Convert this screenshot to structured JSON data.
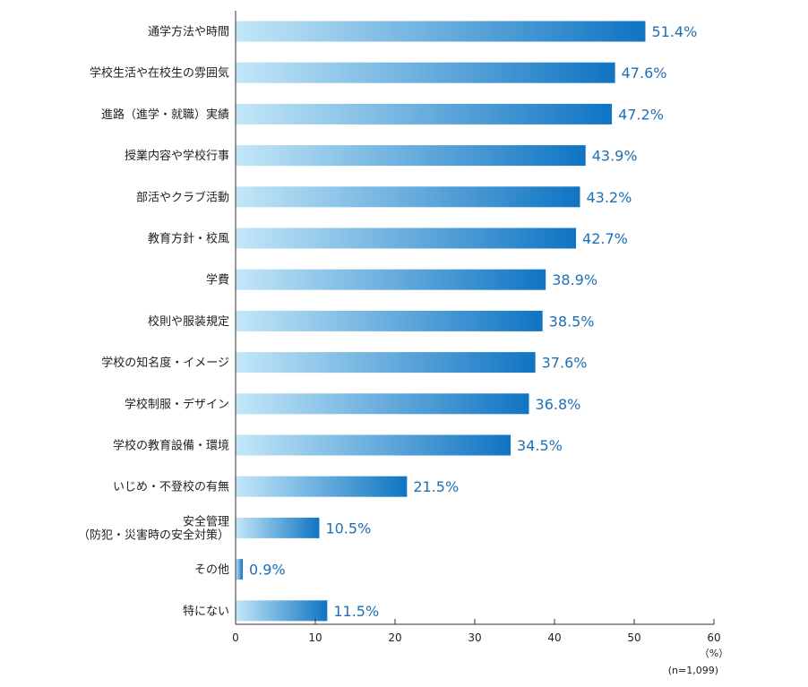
{
  "chart_data": {
    "type": "bar",
    "orientation": "horizontal",
    "categories": [
      [
        "通学方法や時間"
      ],
      [
        "学校生活や在校生の雰囲気"
      ],
      [
        "進路（進学・就職）実績"
      ],
      [
        "授業内容や学校行事"
      ],
      [
        "部活やクラブ活動"
      ],
      [
        "教育方針・校風"
      ],
      [
        "学費"
      ],
      [
        "校則や服装規定"
      ],
      [
        "学校の知名度・イメージ"
      ],
      [
        "学校制服・デザイン"
      ],
      [
        "学校の教育設備・環境"
      ],
      [
        "いじめ・不登校の有無"
      ],
      [
        "安全管理",
        "（防犯・災害時の安全対策）"
      ],
      [
        "その他"
      ],
      [
        "特にない"
      ]
    ],
    "values": [
      51.4,
      47.6,
      47.2,
      43.9,
      43.2,
      42.7,
      38.9,
      38.5,
      37.6,
      36.8,
      34.5,
      21.5,
      10.5,
      0.9,
      11.5
    ],
    "value_labels": [
      "51.4%",
      "47.6%",
      "47.2%",
      "43.9%",
      "43.2%",
      "42.7%",
      "38.9%",
      "38.5%",
      "37.6%",
      "36.8%",
      "34.5%",
      "21.5%",
      "10.5%",
      "0.9%",
      "11.5%"
    ],
    "xticks": [
      "0",
      "10",
      "20",
      "30",
      "40",
      "50",
      "60"
    ],
    "xlim": [
      0,
      60
    ],
    "unit_label": "（%）",
    "sample_note": "(n=1,099)",
    "grid": false,
    "colors": {
      "bar_start": "#c3e7f8",
      "bar_end": "#0f74c3",
      "value_text": "#1e6fb4",
      "axis": "#333333",
      "text": "#222222"
    }
  }
}
